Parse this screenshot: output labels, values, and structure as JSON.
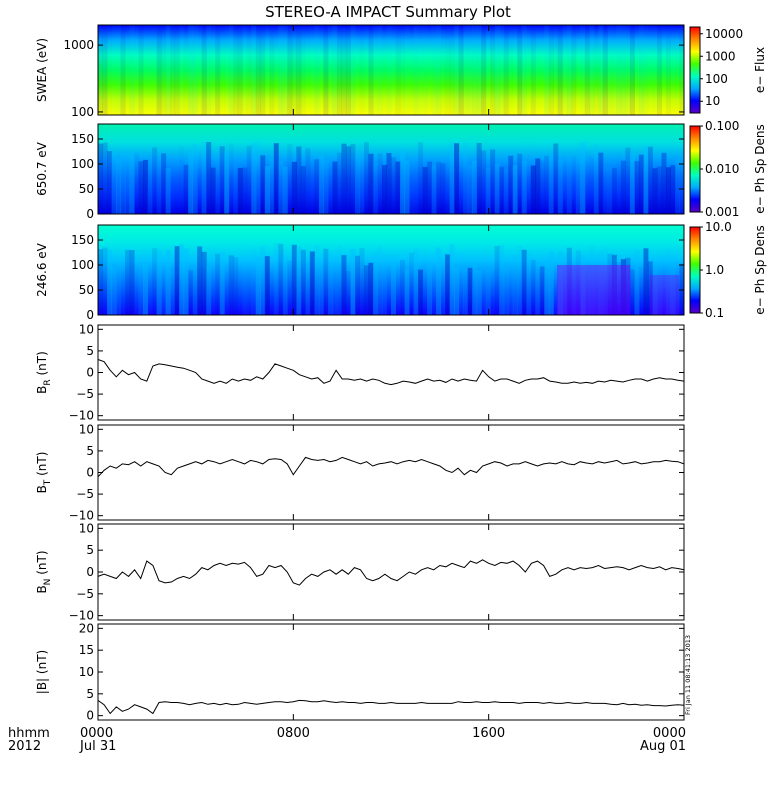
{
  "title": "STEREO-A IMPACT Summary Plot",
  "footer": {
    "left_line1": "hhmm",
    "left_line2": "2012",
    "x_ticks": [
      {
        "hour": 0,
        "line1": "0000",
        "line2": "Jul 31"
      },
      {
        "hour": 8,
        "line1": "0800",
        "line2": ""
      },
      {
        "hour": 16,
        "line1": "1600",
        "line2": ""
      },
      {
        "hour": 24,
        "line1": "0000",
        "line2": "Aug 01"
      }
    ],
    "x_range_hours": [
      0,
      24
    ],
    "stamp": "Fri Jan 11 08:41:13 2013"
  },
  "chart_data": [
    {
      "type": "heatmap",
      "ylabel": "SWEA (eV)",
      "y_scale": "log",
      "ylim": [
        90,
        2000
      ],
      "y_ticks": [
        "1000",
        "100"
      ],
      "y_tick_values": [
        1000,
        100
      ],
      "colorbar": {
        "label": "e− Flux",
        "scale": "log",
        "range": [
          3,
          20000
        ],
        "ticks": [
          "10000",
          "1000",
          "100",
          "10"
        ],
        "tick_values": [
          10000,
          1000,
          100,
          10
        ]
      },
      "colors": [
        "#5a00c8",
        "#0000ff",
        "#00aaff",
        "#00ffc0",
        "#40ff00",
        "#ffff00",
        "#ff8800",
        "#ff0000"
      ]
    },
    {
      "type": "heatmap",
      "ylabel": "650.7 eV",
      "ylim": [
        0,
        180
      ],
      "y_ticks": [
        "150",
        "100",
        "50",
        "0"
      ],
      "y_tick_values": [
        150,
        100,
        50,
        0
      ],
      "colorbar": {
        "label": "e− Ph Sp Dens",
        "scale": "log",
        "range": [
          0.001,
          0.1
        ],
        "ticks": [
          "0.100",
          "0.010",
          "0.001"
        ],
        "tick_values": [
          0.1,
          0.01,
          0.001
        ]
      }
    },
    {
      "type": "heatmap",
      "ylabel": "246.6 eV",
      "ylim": [
        0,
        180
      ],
      "y_ticks": [
        "150",
        "100",
        "50",
        "0"
      ],
      "y_tick_values": [
        150,
        100,
        50,
        0
      ],
      "colorbar": {
        "label": "e− Ph Sp Dens",
        "scale": "log",
        "range": [
          0.1,
          10
        ],
        "ticks": [
          "10.0",
          "1.0",
          "0.1"
        ],
        "tick_values": [
          10,
          1,
          0.1
        ]
      }
    },
    {
      "type": "line",
      "ylabel_main": "B",
      "ylabel_sub": "R",
      "ylabel_unit": " (nT)",
      "ylim": [
        -11,
        11
      ],
      "y_ticks": [
        "10",
        "5",
        "0",
        "−5",
        "−10"
      ],
      "y_tick_values": [
        10,
        5,
        0,
        -5,
        -10
      ],
      "x": [
        0,
        0.25,
        0.5,
        0.75,
        1,
        1.25,
        1.5,
        1.75,
        2,
        2.25,
        2.5,
        2.75,
        3,
        3.25,
        3.5,
        3.75,
        4,
        4.25,
        4.5,
        4.75,
        5,
        5.25,
        5.5,
        5.75,
        6,
        6.25,
        6.5,
        6.75,
        7,
        7.25,
        7.5,
        7.75,
        8,
        8.25,
        8.5,
        8.75,
        9,
        9.25,
        9.5,
        9.75,
        10,
        10.25,
        10.5,
        10.75,
        11,
        11.25,
        11.5,
        11.75,
        12,
        12.25,
        12.5,
        12.75,
        13,
        13.25,
        13.5,
        13.75,
        14,
        14.25,
        14.5,
        14.75,
        15,
        15.25,
        15.5,
        15.75,
        16,
        16.25,
        16.5,
        16.75,
        17,
        17.25,
        17.5,
        17.75,
        18,
        18.25,
        18.5,
        18.75,
        19,
        19.25,
        19.5,
        19.75,
        20,
        20.25,
        20.5,
        20.75,
        21,
        21.25,
        21.5,
        21.75,
        22,
        22.25,
        22.5,
        22.75,
        23,
        23.25,
        23.5,
        23.75,
        24
      ],
      "values": [
        3,
        2.5,
        0.5,
        -1,
        0.5,
        -0.5,
        0,
        -1.5,
        -2,
        1.5,
        2,
        1.8,
        1.5,
        1.2,
        1,
        0.5,
        0,
        -1.5,
        -2,
        -2.5,
        -2,
        -2.5,
        -1.5,
        -2,
        -1.5,
        -1.8,
        -1,
        -1.5,
        0,
        2,
        1.5,
        1,
        0.5,
        -0.5,
        -1,
        -1.5,
        -1.2,
        -2.5,
        -2,
        0.5,
        -1.5,
        -1.5,
        -1.8,
        -1.5,
        -2,
        -1.5,
        -1.8,
        -2.5,
        -2.8,
        -2.5,
        -2,
        -2.2,
        -2.5,
        -2,
        -1.5,
        -2,
        -1.8,
        -2.3,
        -1.5,
        -2,
        -1.5,
        -1.8,
        -2,
        0.5,
        -1,
        -2,
        -1.5,
        -1.5,
        -2,
        -2.5,
        -1.8,
        -1.5,
        -1.5,
        -1.2,
        -2,
        -2.2,
        -2.5,
        -2.5,
        -2.2,
        -2.5,
        -2.3,
        -2.5,
        -2,
        -2.2,
        -1.8,
        -2,
        -2.2,
        -1.8,
        -1.5,
        -1.5,
        -2,
        -1.5,
        -1.2,
        -1.5,
        -1.5,
        -1.8,
        -2
      ]
    },
    {
      "type": "line",
      "ylabel_main": "B",
      "ylabel_sub": "T",
      "ylabel_unit": " (nT)",
      "ylim": [
        -11,
        11
      ],
      "y_ticks": [
        "10",
        "5",
        "0",
        "−5",
        "−10"
      ],
      "y_tick_values": [
        10,
        5,
        0,
        -5,
        -10
      ],
      "x": [
        0,
        0.25,
        0.5,
        0.75,
        1,
        1.25,
        1.5,
        1.75,
        2,
        2.25,
        2.5,
        2.75,
        3,
        3.25,
        3.5,
        3.75,
        4,
        4.25,
        4.5,
        4.75,
        5,
        5.25,
        5.5,
        5.75,
        6,
        6.25,
        6.5,
        6.75,
        7,
        7.25,
        7.5,
        7.75,
        8,
        8.25,
        8.5,
        8.75,
        9,
        9.25,
        9.5,
        9.75,
        10,
        10.25,
        10.5,
        10.75,
        11,
        11.25,
        11.5,
        11.75,
        12,
        12.25,
        12.5,
        12.75,
        13,
        13.25,
        13.5,
        13.75,
        14,
        14.25,
        14.5,
        14.75,
        15,
        15.25,
        15.5,
        15.75,
        16,
        16.25,
        16.5,
        16.75,
        17,
        17.25,
        17.5,
        17.75,
        18,
        18.25,
        18.5,
        18.75,
        19,
        19.25,
        19.5,
        19.75,
        20,
        20.25,
        20.5,
        20.75,
        21,
        21.25,
        21.5,
        21.75,
        22,
        22.25,
        22.5,
        22.75,
        23,
        23.25,
        23.5,
        23.75,
        24
      ],
      "values": [
        -1,
        0.5,
        1.5,
        1,
        2,
        1.8,
        2.5,
        1.5,
        2.5,
        2,
        1.5,
        0,
        -0.5,
        1,
        1.5,
        2,
        2.5,
        2,
        2.8,
        2.5,
        2,
        2.5,
        3,
        2.5,
        2,
        2.8,
        2.5,
        2,
        3,
        3.2,
        3,
        2,
        -0.5,
        1.5,
        3.5,
        3,
        2.8,
        3,
        2.5,
        2.8,
        3.5,
        3,
        2.5,
        2,
        2.5,
        1.5,
        2,
        2.2,
        2.5,
        2,
        2.5,
        2.8,
        2.5,
        3,
        2.5,
        2,
        1.5,
        0.5,
        0,
        1,
        -0.5,
        0.5,
        0,
        1.5,
        2,
        2.5,
        2.2,
        1.5,
        2,
        2,
        2.5,
        2,
        1.5,
        2,
        2.2,
        2,
        2.5,
        2,
        1.8,
        2.5,
        2.2,
        2,
        2.5,
        2.2,
        2.5,
        2.8,
        2,
        2.2,
        2.5,
        2,
        2.2,
        2.5,
        2.5,
        2.8,
        2.6,
        2.5,
        2
      ]
    },
    {
      "type": "line",
      "ylabel_main": "B",
      "ylabel_sub": "N",
      "ylabel_unit": " (nT)",
      "ylim": [
        -11,
        11
      ],
      "y_ticks": [
        "10",
        "5",
        "0",
        "−5",
        "−10"
      ],
      "y_tick_values": [
        10,
        5,
        0,
        -5,
        -10
      ],
      "x": [
        0,
        0.25,
        0.5,
        0.75,
        1,
        1.25,
        1.5,
        1.75,
        2,
        2.25,
        2.5,
        2.75,
        3,
        3.25,
        3.5,
        3.75,
        4,
        4.25,
        4.5,
        4.75,
        5,
        5.25,
        5.5,
        5.75,
        6,
        6.25,
        6.5,
        6.75,
        7,
        7.25,
        7.5,
        7.75,
        8,
        8.25,
        8.5,
        8.75,
        9,
        9.25,
        9.5,
        9.75,
        10,
        10.25,
        10.5,
        10.75,
        11,
        11.25,
        11.5,
        11.75,
        12,
        12.25,
        12.5,
        12.75,
        13,
        13.25,
        13.5,
        13.75,
        14,
        14.25,
        14.5,
        14.75,
        15,
        15.25,
        15.5,
        15.75,
        16,
        16.25,
        16.5,
        16.75,
        17,
        17.25,
        17.5,
        17.75,
        18,
        18.25,
        18.5,
        18.75,
        19,
        19.25,
        19.5,
        19.75,
        20,
        20.25,
        20.5,
        20.75,
        21,
        21.25,
        21.5,
        21.75,
        22,
        22.25,
        22.5,
        22.75,
        23,
        23.25,
        23.5,
        23.75,
        24
      ],
      "values": [
        -1,
        -0.5,
        -1,
        -1.5,
        0,
        -1,
        0.5,
        -1.5,
        2.5,
        1.5,
        -2,
        -2.5,
        -2.3,
        -1.5,
        -1,
        -1.5,
        -0.5,
        1,
        0.5,
        1.5,
        2,
        1.5,
        2,
        1.8,
        2.2,
        1,
        -1,
        -0.5,
        1.5,
        1,
        1.5,
        0,
        -2.5,
        -3,
        -1.5,
        -0.5,
        -1,
        0,
        0.5,
        -0.5,
        0.5,
        -0.5,
        1,
        0.5,
        -1.5,
        -2,
        -1.5,
        -0.5,
        -1.5,
        -2,
        -1,
        0,
        -0.5,
        0.5,
        1,
        0.5,
        1.5,
        1.2,
        2,
        1.5,
        1,
        2.5,
        2,
        2.8,
        2,
        1.5,
        2.2,
        2,
        2.5,
        1.5,
        0,
        2,
        2.5,
        1.5,
        -1,
        -0.5,
        0.5,
        1,
        0.5,
        1,
        0.8,
        1,
        1.5,
        0.8,
        1,
        1.2,
        1,
        0.5,
        1,
        1.5,
        1,
        0.8,
        1.2,
        0.5,
        1,
        0.8,
        0.5
      ]
    },
    {
      "type": "line",
      "ylabel_main": "|B|",
      "ylabel_sub": "",
      "ylabel_unit": " (nT)",
      "ylim": [
        -1,
        21
      ],
      "y_ticks": [
        "20",
        "15",
        "10",
        "5",
        "0"
      ],
      "y_tick_values": [
        20,
        15,
        10,
        5,
        0
      ],
      "x": [
        0,
        0.25,
        0.5,
        0.75,
        1,
        1.25,
        1.5,
        1.75,
        2,
        2.25,
        2.5,
        2.75,
        3,
        3.25,
        3.5,
        3.75,
        4,
        4.25,
        4.5,
        4.75,
        5,
        5.25,
        5.5,
        5.75,
        6,
        6.25,
        6.5,
        6.75,
        7,
        7.25,
        7.5,
        7.75,
        8,
        8.25,
        8.5,
        8.75,
        9,
        9.25,
        9.5,
        9.75,
        10,
        10.25,
        10.5,
        10.75,
        11,
        11.25,
        11.5,
        11.75,
        12,
        12.25,
        12.5,
        12.75,
        13,
        13.25,
        13.5,
        13.75,
        14,
        14.25,
        14.5,
        14.75,
        15,
        15.25,
        15.5,
        15.75,
        16,
        16.25,
        16.5,
        16.75,
        17,
        17.25,
        17.5,
        17.75,
        18,
        18.25,
        18.5,
        18.75,
        19,
        19.25,
        19.5,
        19.75,
        20,
        20.25,
        20.5,
        20.75,
        21,
        21.25,
        21.5,
        21.75,
        22,
        22.25,
        22.5,
        22.75,
        23,
        23.25,
        23.5,
        23.75,
        24
      ],
      "values": [
        3.5,
        2.5,
        0.5,
        2,
        1,
        1.5,
        2.5,
        2,
        1.5,
        0.5,
        3,
        3.2,
        3,
        3,
        2.8,
        2.5,
        2.8,
        3,
        2.6,
        2.8,
        2.5,
        2.8,
        2.5,
        2.6,
        3,
        2.8,
        2.6,
        2.8,
        3,
        3.2,
        3.2,
        3,
        3.2,
        3.5,
        3.4,
        3.2,
        3.2,
        3.4,
        3.2,
        3,
        3.2,
        3,
        3,
        2.8,
        3,
        3,
        2.8,
        2.8,
        3,
        2.8,
        2.8,
        2.8,
        2.8,
        3,
        2.8,
        2.8,
        2.8,
        2.8,
        2.8,
        3.2,
        3,
        3,
        3.2,
        3,
        3,
        3.2,
        3,
        3,
        3,
        2.8,
        3,
        3,
        3,
        2.8,
        3,
        2.8,
        2.8,
        3,
        2.8,
        2.8,
        3,
        2.8,
        2.8,
        2.8,
        2.6,
        2.5,
        2.8,
        2.5,
        2.6,
        2.4,
        2.5,
        2.3,
        2.3,
        2.2,
        2.4,
        2.5,
        2.4
      ]
    }
  ]
}
